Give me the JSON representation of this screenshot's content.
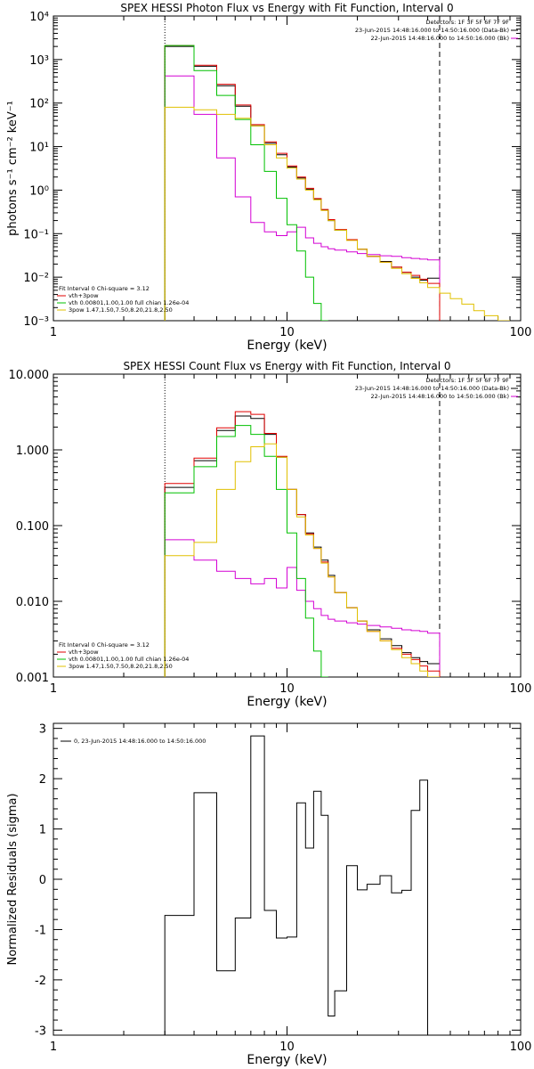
{
  "chart_data": [
    {
      "type": "line",
      "title": "SPEX HESSI Photon Flux vs Energy with Fit Function, Interval 0",
      "xlabel": "Energy (keV)",
      "ylabel": "photons s⁻¹ cm⁻² keV⁻¹",
      "xscale": "log",
      "yscale": "log",
      "xlim": [
        1,
        100
      ],
      "ylim": [
        0.001,
        10000
      ],
      "xticklabels": [
        "1",
        "10",
        "100"
      ],
      "yticklabels": [
        "10⁻³",
        "10⁻²",
        "10⁻¹",
        "10⁰",
        "10¹",
        "10²",
        "10³",
        "10⁴"
      ],
      "legend_top": [
        "Detectors: 1F 3F 5F 6F 7F 9F",
        "23-Jun-2015 14:48:16.000 to 14:50:16.000 (Data-Bk)",
        "22-Jun-2015 14:48:16.000 to 14:50:16.000 (Bk)"
      ],
      "legend_bottom": [
        "Fit Interval 0   Chi-square = 3.12",
        "vth+3pow",
        "vth 0.00801,1.00,1.00   full chian 1.26e-04",
        "3pow 1.47,1.50,7.50,8.20,21.8,2.50"
      ],
      "vlines": [
        {
          "x": 3,
          "style": "dotted"
        },
        {
          "x": 45,
          "style": "dashed"
        }
      ],
      "edges": [
        3,
        4,
        5,
        6,
        7,
        8,
        9,
        10,
        11,
        12,
        13,
        14,
        15,
        16,
        18,
        20,
        22,
        25,
        28,
        31,
        34,
        37,
        40,
        45,
        50,
        56,
        63,
        70,
        80,
        90
      ],
      "series": [
        {
          "name": "23-Jun-2015 14:48:16.000 to 14:50:16.000 (Data-Bk)",
          "color": "#000000",
          "values": [
            2000,
            700,
            250,
            85,
            30,
            12,
            6.5,
            3.4,
            1.9,
            1.05,
            0.62,
            0.35,
            0.2,
            0.12,
            0.072,
            0.044,
            0.03,
            0.023,
            0.017,
            0.013,
            0.01,
            0.0085,
            0.0095
          ]
        },
        {
          "name": "22-Jun-2015 14:48:16.000 to 14:50:16.000 (Bk)",
          "color": "#d400d4",
          "values": [
            420,
            55,
            5.5,
            0.7,
            0.18,
            0.11,
            0.09,
            0.11,
            0.14,
            0.08,
            0.06,
            0.05,
            0.045,
            0.042,
            0.038,
            0.035,
            0.033,
            0.031,
            0.03,
            0.028,
            0.027,
            0.026,
            0.025
          ]
        },
        {
          "name": "vth+3pow",
          "color": "#e00000",
          "values": [
            2100,
            740,
            270,
            90,
            32,
            12.8,
            7,
            3.6,
            2,
            1.1,
            0.64,
            0.36,
            0.21,
            0.125,
            0.073,
            0.044,
            0.03,
            0.022,
            0.017,
            0.013,
            0.011,
            0.009,
            0.0072
          ]
        },
        {
          "name": "vth 0.00801,1.00,1.00",
          "color": "#00c000",
          "values": [
            2100,
            560,
            150,
            42,
            11,
            2.7,
            0.65,
            0.16,
            0.04,
            0.01,
            0.0025,
            0.001
          ]
        },
        {
          "name": "3pow 1.47,1.50,7.50,8.20,21.8,2.50",
          "color": "#e0c000",
          "values": [
            80,
            70,
            55,
            45,
            30,
            11,
            5.5,
            3.2,
            1.8,
            1.0,
            0.6,
            0.34,
            0.2,
            0.12,
            0.07,
            0.044,
            0.03,
            0.022,
            0.016,
            0.012,
            0.0094,
            0.0074,
            0.0058,
            0.0043,
            0.0032,
            0.0024,
            0.0017,
            0.0013,
            0.001
          ]
        }
      ]
    },
    {
      "type": "line",
      "title": "SPEX HESSI Count Flux vs Energy with Fit Function, Interval 0",
      "xlabel": "Energy (keV)",
      "ylabel": "",
      "xscale": "log",
      "yscale": "log",
      "xlim": [
        1,
        100
      ],
      "ylim": [
        0.001,
        10
      ],
      "xticklabels": [
        "1",
        "10",
        "100"
      ],
      "yticklabels": [
        "0.001",
        "0.010",
        "0.100",
        "1.000",
        "10.000"
      ],
      "legend_top": [
        "Detectors: 1F 3F 5F 6F 7F 9F",
        "23-Jun-2015 14:48:16.000 to 14:50:16.000 (Data-Bk)",
        "22-Jun-2015 14:48:16.000 to 14:50:16.000 (Bk)"
      ],
      "legend_bottom": [
        "Fit Interval 0   Chi-square = 3.12",
        "vth+3pow",
        "vth 0.00801,1.00,1.00   full chian 1.26e-04",
        "3pow 1.47,1.50,7.50,8.20,21.8,2.50"
      ],
      "vlines": [
        {
          "x": 3,
          "style": "dotted"
        },
        {
          "x": 45,
          "style": "dashed"
        }
      ],
      "edges": [
        3,
        4,
        5,
        6,
        7,
        8,
        9,
        10,
        11,
        12,
        13,
        14,
        15,
        16,
        18,
        20,
        22,
        25,
        28,
        31,
        34,
        37,
        40,
        45
      ],
      "series": [
        {
          "name": "23-Jun-2015 14:48:16.000 to 14:50:16.000 (Data-Bk)",
          "color": "#000000",
          "values": [
            0.32,
            0.72,
            1.8,
            2.8,
            2.6,
            1.6,
            0.8,
            0.3,
            0.14,
            0.08,
            0.052,
            0.035,
            0.022,
            0.013,
            0.0082,
            0.0055,
            0.0042,
            0.0032,
            0.0026,
            0.0021,
            0.0018,
            0.0016,
            0.0015
          ]
        },
        {
          "name": "22-Jun-2015 14:48:16.000 to 14:50:16.000 (Bk)",
          "color": "#d400d4",
          "values": [
            0.065,
            0.035,
            0.025,
            0.02,
            0.017,
            0.02,
            0.015,
            0.028,
            0.014,
            0.01,
            0.008,
            0.0065,
            0.0058,
            0.0055,
            0.0052,
            0.005,
            0.0048,
            0.0046,
            0.0044,
            0.0042,
            0.0041,
            0.004,
            0.0038
          ]
        },
        {
          "name": "vth+3pow",
          "color": "#e00000",
          "values": [
            0.36,
            0.78,
            1.95,
            3.2,
            2.95,
            1.65,
            0.82,
            0.3,
            0.14,
            0.078,
            0.05,
            0.033,
            0.021,
            0.013,
            0.0082,
            0.0055,
            0.004,
            0.003,
            0.0024,
            0.002,
            0.0017,
            0.0014,
            0.0012
          ]
        },
        {
          "name": "vth 0.00801,1.00,1.00",
          "color": "#00c000",
          "values": [
            0.27,
            0.6,
            1.5,
            2.1,
            1.6,
            0.82,
            0.3,
            0.08,
            0.02,
            0.006,
            0.0022,
            0.001
          ]
        },
        {
          "name": "3pow 1.47,1.50,7.50,8.20,21.8,2.50",
          "color": "#e0c000",
          "values": [
            0.04,
            0.06,
            0.3,
            0.7,
            1.1,
            1.2,
            0.8,
            0.3,
            0.13,
            0.075,
            0.05,
            0.032,
            0.021,
            0.013,
            0.0082,
            0.0055,
            0.004,
            0.003,
            0.0023,
            0.0018,
            0.0015,
            0.0012,
            0.001
          ]
        }
      ]
    },
    {
      "type": "line",
      "title": "",
      "xlabel": "Energy (keV)",
      "ylabel": "Normalized Residuals (sigma)",
      "xscale": "log",
      "yscale": "linear",
      "xlim": [
        1,
        100
      ],
      "ylim": [
        -3.1,
        3.1
      ],
      "xticklabels": [
        "1",
        "10",
        "100"
      ],
      "yticklabels": [
        "-3",
        "-2",
        "-1",
        "0",
        "1",
        "2",
        "3"
      ],
      "legend": "0, 23-Jun-2015 14:48:16.000 to 14:50:16.000",
      "edges": [
        3,
        4,
        5,
        6,
        7,
        8,
        9,
        10,
        11,
        12,
        13,
        14,
        15,
        16,
        18,
        20,
        22,
        25,
        28,
        31,
        34,
        37,
        40,
        45
      ],
      "series": [
        {
          "name": "0, 23-Jun-2015 14:48:16.000 to 14:50:16.000",
          "color": "#000000",
          "values": [
            -0.72,
            1.72,
            -1.82,
            -0.77,
            2.85,
            -0.62,
            -1.17,
            -1.15,
            1.52,
            0.62,
            1.75,
            1.27,
            -2.72,
            -2.22,
            0.27,
            -0.21,
            -0.1,
            0.07,
            -0.27,
            -0.22,
            1.37,
            1.97
          ]
        }
      ]
    }
  ]
}
